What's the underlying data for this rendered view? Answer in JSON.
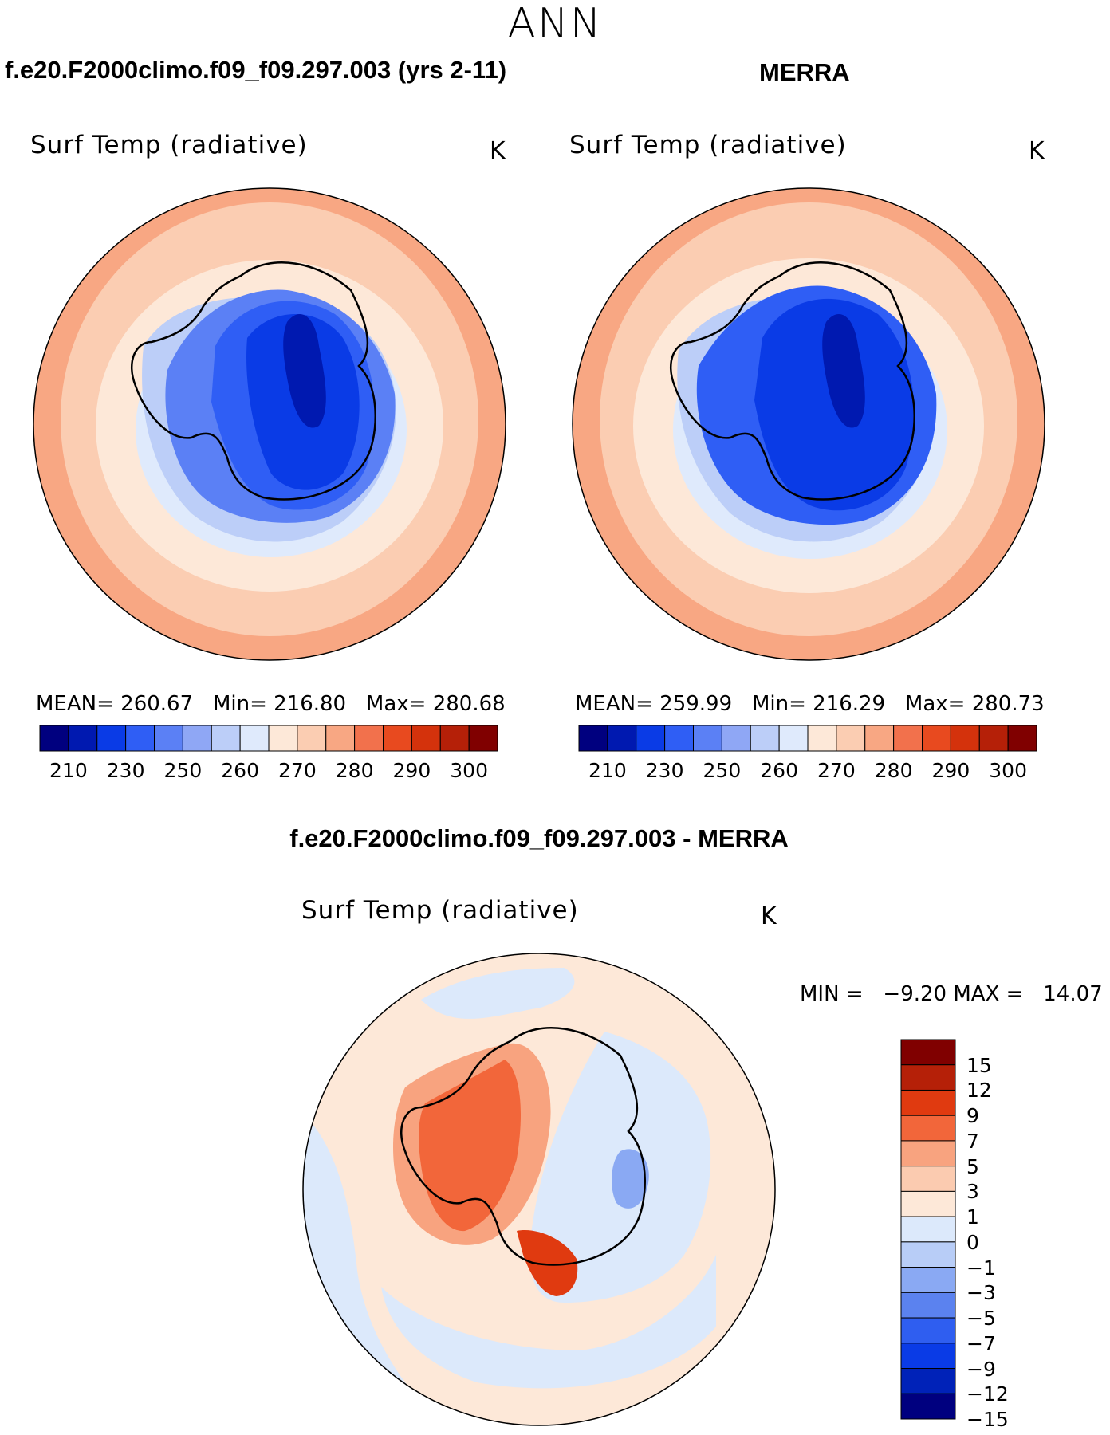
{
  "super_title": "ANN",
  "panels": [
    {
      "case_title": "f.e20.F2000climo.f09_f09.297.003 (yrs 2-11)",
      "variable": "Surf Temp (radiative)",
      "units": "K",
      "stats": {
        "mean_label": "MEAN=",
        "mean": "260.67",
        "min_label": "Min=",
        "min": "216.80",
        "max_label": "Max=",
        "max": "280.68"
      }
    },
    {
      "case_title": "MERRA",
      "variable": "Surf Temp (radiative)",
      "units": "K",
      "stats": {
        "mean_label": "MEAN=",
        "mean": "259.99",
        "min_label": "Min=",
        "min": "216.29",
        "max_label": "Max=",
        "max": "280.73"
      }
    }
  ],
  "abs_colorbar": {
    "ticks": [
      "210",
      "230",
      "250",
      "260",
      "270",
      "280",
      "290",
      "300"
    ],
    "colors": [
      "#00007f",
      "#0019b0",
      "#0a3be6",
      "#2f5ef5",
      "#5b80f5",
      "#8fa7f5",
      "#bccef8",
      "#dfeafc",
      "#fde8d8",
      "#fbcdb2",
      "#f8a783",
      "#f2714c",
      "#e84a1f",
      "#d4320c",
      "#b52008",
      "#800000"
    ]
  },
  "diff": {
    "title": "f.e20.F2000climo.f09_f09.297.003 - MERRA",
    "variable": "Surf Temp (radiative)",
    "units": "K",
    "min_label": "MIN =",
    "min": "−9.20",
    "max_label": "MAX =",
    "max": "14.07",
    "colorbar": {
      "ticks": [
        "15",
        "12",
        "9",
        "7",
        "5",
        "3",
        "1",
        "0",
        "−1",
        "−3",
        "−5",
        "−7",
        "−9",
        "−12",
        "−15"
      ],
      "colors": [
        "#800000",
        "#b52008",
        "#e03a10",
        "#f2663a",
        "#f8a37f",
        "#fbcbb0",
        "#fde8d8",
        "#dce9fb",
        "#b8cdf7",
        "#8aa9f3",
        "#5b82ef",
        "#2f5ef0",
        "#0a3be6",
        "#0022b8",
        "#00007f"
      ]
    }
  }
}
